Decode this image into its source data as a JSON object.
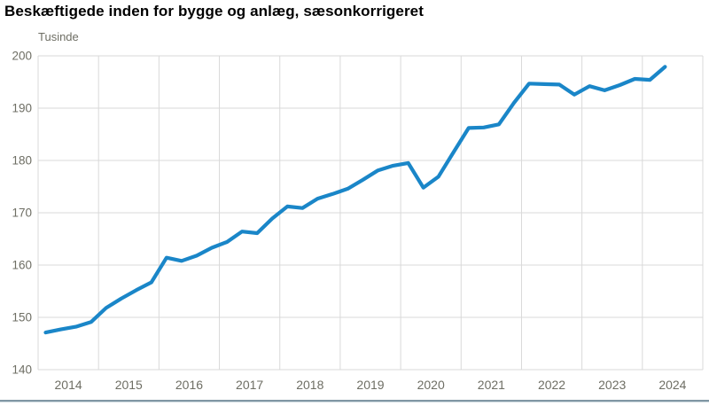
{
  "page": {
    "background": "#ffffff",
    "footer_rule_color": "#8097a4"
  },
  "chart_data": {
    "type": "line",
    "title": "Beskæftigede inden for bygge og anlæg, sæsonkorrigeret",
    "ylabel": "Tusinde",
    "xlabel": "",
    "frequency": "quarterly",
    "grid": true,
    "legend_position": "none",
    "ylim": [
      140,
      200
    ],
    "xlim": [
      2014,
      2025
    ],
    "y_ticks": [
      140,
      150,
      160,
      170,
      180,
      190,
      200
    ],
    "y_tick_labels": [
      "140",
      "150",
      "160",
      "170",
      "180",
      "190",
      "200"
    ],
    "x_gridlines": [
      2014,
      2015,
      2016,
      2017,
      2018,
      2019,
      2020,
      2021,
      2022,
      2023,
      2024,
      2025
    ],
    "x_tick_positions": [
      2014.5,
      2015.5,
      2016.5,
      2017.5,
      2018.5,
      2019.5,
      2020.5,
      2021.5,
      2022.5,
      2023.5,
      2024.5
    ],
    "x_tick_labels": [
      "2014",
      "2015",
      "2016",
      "2017",
      "2018",
      "2019",
      "2020",
      "2021",
      "2022",
      "2023",
      "2024"
    ],
    "grid_color": "#d9d9d9",
    "tick_label_color": "#6e6e64",
    "series": [
      {
        "name": "Beskæftigede inden for bygge og anlæg, sæsonkorrigeret",
        "color": "#1a86c8",
        "x": [
          2014.125,
          2014.375,
          2014.625,
          2014.875,
          2015.125,
          2015.375,
          2015.625,
          2015.875,
          2016.125,
          2016.375,
          2016.625,
          2016.875,
          2017.125,
          2017.375,
          2017.625,
          2017.875,
          2018.125,
          2018.375,
          2018.625,
          2018.875,
          2019.125,
          2019.375,
          2019.625,
          2019.875,
          2020.125,
          2020.375,
          2020.625,
          2020.875,
          2021.125,
          2021.375,
          2021.625,
          2021.875,
          2022.125,
          2022.375,
          2022.625,
          2022.875,
          2023.125,
          2023.375,
          2023.625,
          2023.875,
          2024.125,
          2024.375
        ],
        "values": [
          147.1,
          147.7,
          148.2,
          149.1,
          151.8,
          153.6,
          155.2,
          156.7,
          161.4,
          160.8,
          161.8,
          163.3,
          164.4,
          166.4,
          166.1,
          168.9,
          171.2,
          170.9,
          172.7,
          173.6,
          174.6,
          176.3,
          178.1,
          179.0,
          179.5,
          174.8,
          176.9,
          181.6,
          186.2,
          186.3,
          186.9,
          191.0,
          194.7,
          194.6,
          194.5,
          192.6,
          194.2,
          193.4,
          194.4,
          195.6,
          195.4,
          197.9
        ]
      }
    ]
  }
}
